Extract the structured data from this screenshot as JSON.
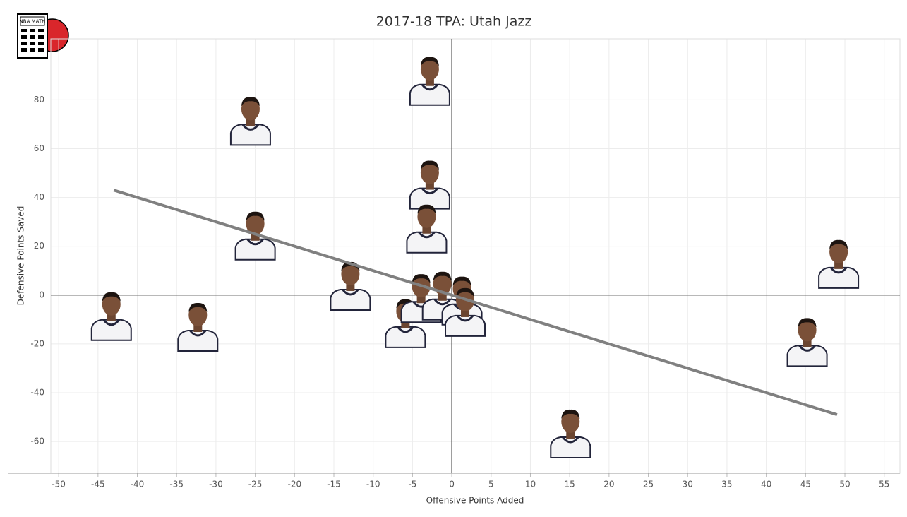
{
  "logo": {
    "text": "NBA MATH"
  },
  "chart_data": {
    "type": "scatter",
    "title": "2017-18 TPA: Utah Jazz",
    "x_label": "Offensive Points Added",
    "y_label": "Defensive Points Saved",
    "x": [
      -2.8,
      -25.6,
      -2.8,
      -3.2,
      -25,
      49.2,
      -12.9,
      -43.3,
      -32.3,
      45.2,
      -5.9,
      -3.9,
      -1.2,
      1.3,
      1.7,
      15.1
    ],
    "y": [
      88,
      71.6,
      45.5,
      27.5,
      24.6,
      13,
      4,
      -8.4,
      -12.8,
      -19,
      -11.3,
      -1,
      0,
      -2,
      -6.7,
      -56.5
    ],
    "trendline": {
      "x": [
        -43,
        49
      ],
      "y": [
        43,
        -49
      ],
      "color": "#808080"
    },
    "xlim": [
      -51,
      57
    ],
    "ylim": [
      -73,
      105
    ],
    "xticks": [
      -50,
      -45,
      -40,
      -35,
      -30,
      -25,
      -20,
      -15,
      -10,
      -5,
      0,
      5,
      10,
      15,
      20,
      25,
      30,
      35,
      40,
      45,
      50,
      55
    ],
    "yticks": [
      -60,
      -40,
      -20,
      0,
      20,
      40,
      60,
      80
    ],
    "grid": true
  }
}
